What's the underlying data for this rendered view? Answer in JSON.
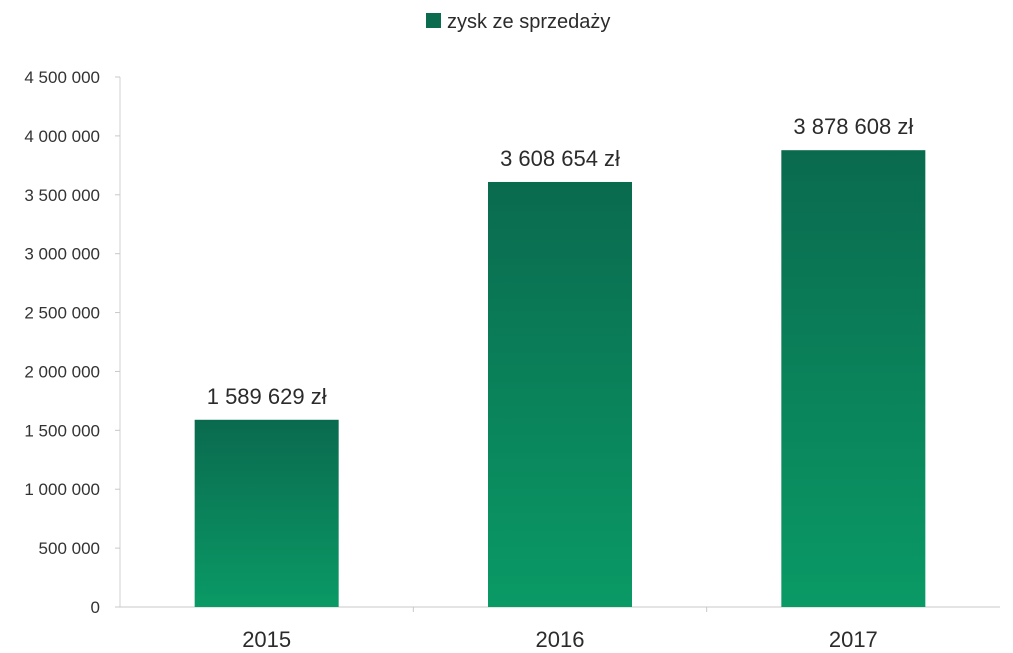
{
  "chart_data": {
    "type": "bar",
    "categories": [
      "2015",
      "2016",
      "2017"
    ],
    "series": [
      {
        "name": "zysk ze sprzedaży",
        "values": [
          1589629,
          3608654,
          3878608
        ],
        "data_labels": [
          "1 589 629 zł",
          "3 608 654 zł",
          "3 878 608 zł"
        ]
      }
    ],
    "yticks": [
      0,
      500000,
      1000000,
      1500000,
      2000000,
      2500000,
      3000000,
      3500000,
      4000000,
      4500000
    ],
    "ytick_labels": [
      "0",
      "500 000",
      "1 000 000",
      "1 500 000",
      "2 000 000",
      "2 500 000",
      "3 000 000",
      "3 500 000",
      "4 000 000",
      "4 500 000"
    ],
    "ylim": [
      0,
      4500000
    ],
    "legend_position": "top",
    "grid": false,
    "bar_color_top": "#0a6a4e",
    "bar_color_bottom": "#0a9a66",
    "legend_color": "#0a6b4f"
  }
}
